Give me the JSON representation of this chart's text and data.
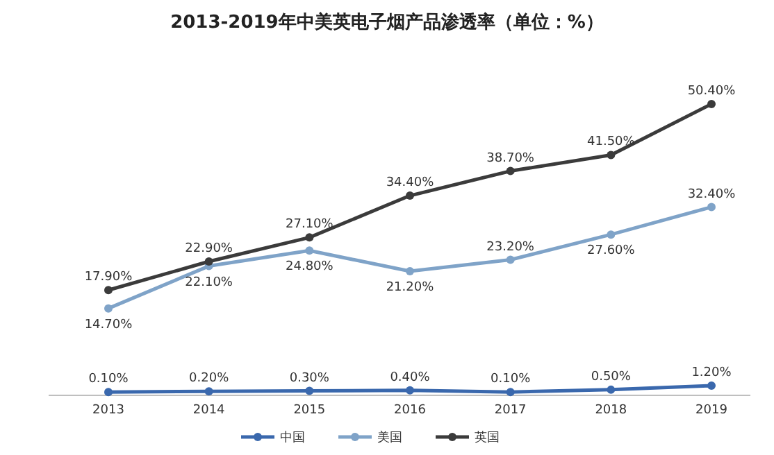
{
  "chart_data": {
    "type": "line",
    "title": "2013-2019年中美英电子烟产品渗透率（单位：%）",
    "categories": [
      "2013",
      "2014",
      "2015",
      "2016",
      "2017",
      "2018",
      "2019"
    ],
    "series": [
      {
        "name": "中国",
        "color": "#3a68ad",
        "values": [
          0.1,
          0.2,
          0.3,
          0.4,
          0.1,
          0.5,
          1.2
        ],
        "value_labels": [
          "0.10%",
          "0.20%",
          "0.30%",
          "0.40%",
          "0.10%",
          "0.50%",
          "1.20%"
        ]
      },
      {
        "name": "美国",
        "color": "#7fa3c8",
        "values": [
          14.7,
          22.1,
          24.8,
          21.2,
          23.2,
          27.6,
          32.4
        ],
        "value_labels": [
          "14.70%",
          "22.10%",
          "24.80%",
          "21.20%",
          "23.20%",
          "27.60%",
          "32.40%"
        ]
      },
      {
        "name": "英国",
        "color": "#3b3b3b",
        "values": [
          17.9,
          22.9,
          27.1,
          34.4,
          38.7,
          41.5,
          50.4
        ],
        "value_labels": [
          "17.90%",
          "22.90%",
          "27.10%",
          "34.40%",
          "38.70%",
          "41.50%",
          "50.40%"
        ]
      }
    ],
    "marker": "circle",
    "legend": "bottom"
  }
}
